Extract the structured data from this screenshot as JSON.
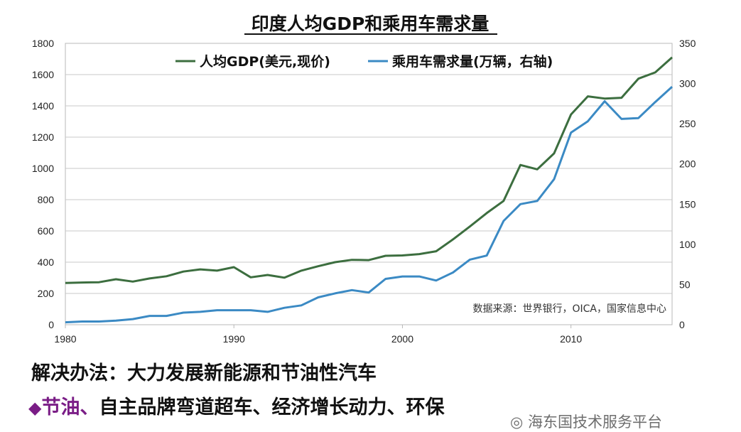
{
  "chart_data": {
    "type": "line",
    "title": "印度人均GDP和乘用车需求量",
    "x": [
      1980,
      1981,
      1982,
      1983,
      1984,
      1985,
      1986,
      1987,
      1988,
      1989,
      1990,
      1991,
      1992,
      1993,
      1994,
      1995,
      1996,
      1997,
      1998,
      1999,
      2000,
      2001,
      2002,
      2003,
      2004,
      2005,
      2006,
      2007,
      2008,
      2009,
      2010,
      2011,
      2012,
      2013,
      2014,
      2015,
      2016
    ],
    "xticks": [
      1980,
      1990,
      2000,
      2010
    ],
    "xlim": [
      1980,
      2016
    ],
    "ylim_left": [
      0,
      1800
    ],
    "yticks_left": [
      0,
      200,
      400,
      600,
      800,
      1000,
      1200,
      1400,
      1600,
      1800
    ],
    "ylim_right": [
      0,
      350
    ],
    "yticks_right": [
      0,
      50,
      100,
      150,
      200,
      250,
      300,
      350
    ],
    "grid": true,
    "legend_position": "top",
    "series": [
      {
        "name": "人均GDP(美元,现价)",
        "axis": "left",
        "color": "#3c6e3f",
        "values": [
          267,
          270,
          272,
          291,
          276,
          296,
          310,
          340,
          354,
          346,
          368,
          303,
          318,
          301,
          346,
          374,
          400,
          415,
          413,
          441,
          443,
          452,
          470,
          546,
          628,
          714,
          792,
          1022,
          994,
          1096,
          1345,
          1461,
          1447,
          1452,
          1574,
          1614,
          1710
        ]
      },
      {
        "name": "乘用车需求量(万辆，右轴)",
        "axis": "right",
        "color": "#3b8ac4",
        "values": [
          3,
          4,
          4,
          5,
          7,
          11,
          11,
          15,
          16,
          18,
          18,
          18,
          16,
          21,
          24,
          34,
          39,
          43,
          40,
          57,
          60,
          60,
          55,
          65,
          81,
          86,
          129,
          150,
          154,
          181,
          239,
          253,
          278,
          256,
          257,
          277,
          296
        ]
      }
    ],
    "source_note": "数据来源：世界银行，OICA，国家信息中心"
  },
  "text": {
    "solution": "解决办法：大力发展新能源和节油性汽车",
    "bullet_symbol": "◆",
    "highlight": "节油、",
    "tags": "自主品牌弯道超车、经济增长动力、环保",
    "watermark": "海东国技术服务平台"
  }
}
